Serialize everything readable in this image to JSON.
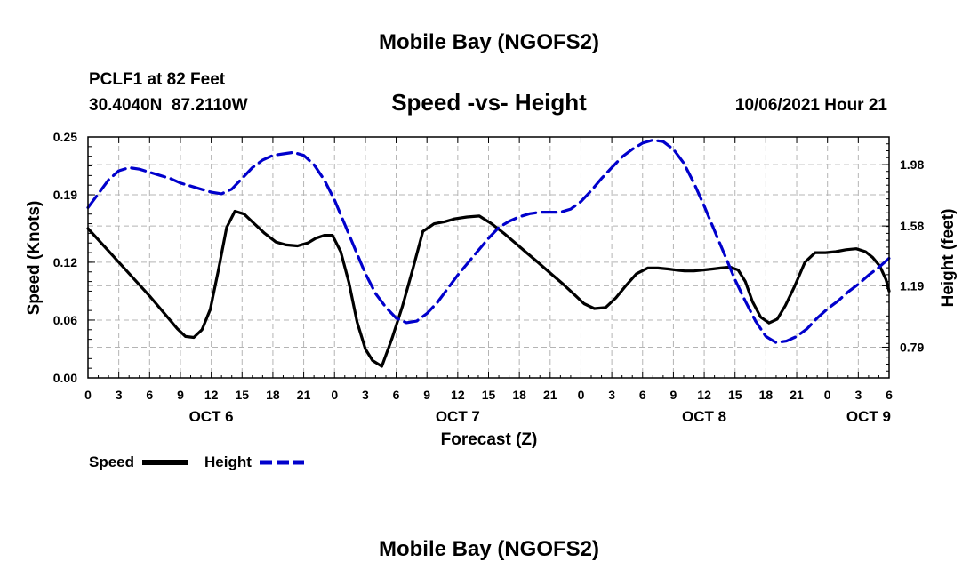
{
  "page": {
    "top_title": "Mobile Bay (NGOFS2)",
    "bottom_title": "Mobile Bay (NGOFS2)"
  },
  "header": {
    "station": "PCLF1 at 82 Feet",
    "coords": "30.4040N  87.2110W",
    "plot_title": "Speed -vs- Height",
    "datetime": "10/06/2021 Hour 21"
  },
  "legend": {
    "speed_label": "Speed",
    "height_label": "Height"
  },
  "colors": {
    "speed": "#000000",
    "height": "#0000cc",
    "grid": "#b4b4b4"
  },
  "chart_data": {
    "type": "line",
    "title": "Speed -vs- Height",
    "xlabel": "Forecast (Z)",
    "ylabel": "Speed (Knots)",
    "y2label": "Height (feet)",
    "xlim": [
      0,
      78
    ],
    "ylim": [
      0,
      0.25
    ],
    "y2lim": [
      0.59,
      2.16
    ],
    "x_ticks": [
      0,
      3,
      6,
      9,
      12,
      15,
      18,
      21,
      24,
      27,
      30,
      33,
      36,
      39,
      42,
      45,
      48,
      51,
      54,
      57,
      60,
      63,
      66,
      69,
      72,
      75,
      78
    ],
    "x_tick_labels": [
      "0",
      "3",
      "6",
      "9",
      "12",
      "15",
      "18",
      "21",
      "0",
      "3",
      "6",
      "9",
      "12",
      "15",
      "18",
      "21",
      "0",
      "3",
      "6",
      "9",
      "12",
      "15",
      "18",
      "21",
      "0",
      "3",
      "6"
    ],
    "day_labels": [
      {
        "x": 12,
        "label": "OCT 6"
      },
      {
        "x": 36,
        "label": "OCT 7"
      },
      {
        "x": 60,
        "label": "OCT 8"
      },
      {
        "x": 76,
        "label": "OCT 9"
      }
    ],
    "y_ticks": [
      0.0,
      0.06,
      0.12,
      0.19,
      0.25
    ],
    "y_tick_labels": [
      "0.00",
      "0.06",
      "0.12",
      "0.19",
      "0.25"
    ],
    "y2_ticks": [
      0.79,
      1.19,
      1.58,
      1.98
    ],
    "y2_tick_labels": [
      "0.79",
      "1.19",
      "1.58",
      "1.98"
    ],
    "grid": true,
    "series": [
      {
        "name": "Speed",
        "axis": "left",
        "x": [
          0,
          3,
          6,
          8.7,
          9.5,
          10.3,
          11.1,
          11.9,
          12.7,
          13.5,
          14.3,
          15.2,
          16.2,
          17.2,
          18.3,
          19.3,
          20.4,
          21.4,
          22.2,
          23,
          23.8,
          24.6,
          25.4,
          26.2,
          27,
          27.7,
          28.6,
          29.6,
          30.6,
          31.6,
          32.6,
          33.7,
          34.7,
          35.7,
          36.9,
          38.1,
          39.3,
          40.5,
          41.6,
          42.7,
          43.8,
          45.2,
          46.3,
          47.3,
          48.3,
          49.3,
          50.4,
          51.4,
          52.4,
          53.4,
          54.5,
          55.5,
          56.5,
          57.2,
          58.1,
          59,
          59.9,
          60.8,
          61.6,
          62.5,
          63.3,
          64,
          64.7,
          65.5,
          66.3,
          67.1,
          67.9,
          68.8,
          69.8,
          70.8,
          71.8,
          72.8,
          73.8,
          74.8,
          75.7,
          76.4,
          77.1,
          77.7,
          78
        ],
        "values": [
          0.155,
          0.12,
          0.085,
          0.051,
          0.043,
          0.042,
          0.05,
          0.071,
          0.112,
          0.156,
          0.173,
          0.17,
          0.16,
          0.15,
          0.141,
          0.138,
          0.137,
          0.14,
          0.145,
          0.148,
          0.148,
          0.131,
          0.099,
          0.058,
          0.03,
          0.018,
          0.012,
          0.041,
          0.074,
          0.112,
          0.152,
          0.16,
          0.162,
          0.165,
          0.167,
          0.168,
          0.16,
          0.15,
          0.14,
          0.13,
          0.12,
          0.107,
          0.097,
          0.087,
          0.077,
          0.072,
          0.073,
          0.083,
          0.096,
          0.108,
          0.114,
          0.114,
          0.113,
          0.112,
          0.111,
          0.111,
          0.112,
          0.113,
          0.114,
          0.115,
          0.112,
          0.1,
          0.079,
          0.063,
          0.057,
          0.061,
          0.075,
          0.095,
          0.12,
          0.13,
          0.13,
          0.131,
          0.133,
          0.134,
          0.131,
          0.125,
          0.116,
          0.102,
          0.09
        ]
      },
      {
        "name": "Height",
        "axis": "right",
        "x": [
          0,
          1,
          2,
          3,
          4,
          5,
          6,
          7,
          8,
          9,
          10,
          11,
          12,
          13,
          14,
          15,
          16,
          17,
          18,
          19,
          20,
          21,
          22,
          23,
          24,
          25,
          26,
          27,
          28,
          29,
          30,
          31,
          32,
          33,
          34,
          35,
          36,
          37,
          38,
          39,
          40,
          41,
          42,
          43,
          44,
          45,
          46,
          47,
          48,
          49,
          50,
          51,
          52,
          53,
          54,
          55,
          56,
          57,
          58,
          59,
          60,
          61,
          62,
          63,
          64,
          65,
          66,
          67,
          68,
          69,
          70,
          71,
          72,
          73,
          74,
          75,
          76,
          77,
          78
        ],
        "values": [
          1.7,
          1.79,
          1.88,
          1.94,
          1.96,
          1.95,
          1.93,
          1.91,
          1.89,
          1.86,
          1.84,
          1.82,
          1.8,
          1.79,
          1.82,
          1.89,
          1.96,
          2.01,
          2.04,
          2.05,
          2.06,
          2.04,
          1.98,
          1.88,
          1.75,
          1.59,
          1.43,
          1.27,
          1.14,
          1.05,
          0.98,
          0.95,
          0.96,
          1.01,
          1.08,
          1.17,
          1.26,
          1.34,
          1.42,
          1.5,
          1.57,
          1.61,
          1.64,
          1.66,
          1.67,
          1.67,
          1.67,
          1.69,
          1.74,
          1.81,
          1.89,
          1.96,
          2.03,
          2.08,
          2.12,
          2.14,
          2.13,
          2.08,
          1.99,
          1.86,
          1.71,
          1.55,
          1.39,
          1.23,
          1.09,
          0.96,
          0.86,
          0.82,
          0.83,
          0.86,
          0.91,
          0.98,
          1.04,
          1.09,
          1.15,
          1.2,
          1.26,
          1.31,
          1.37
        ]
      }
    ]
  }
}
